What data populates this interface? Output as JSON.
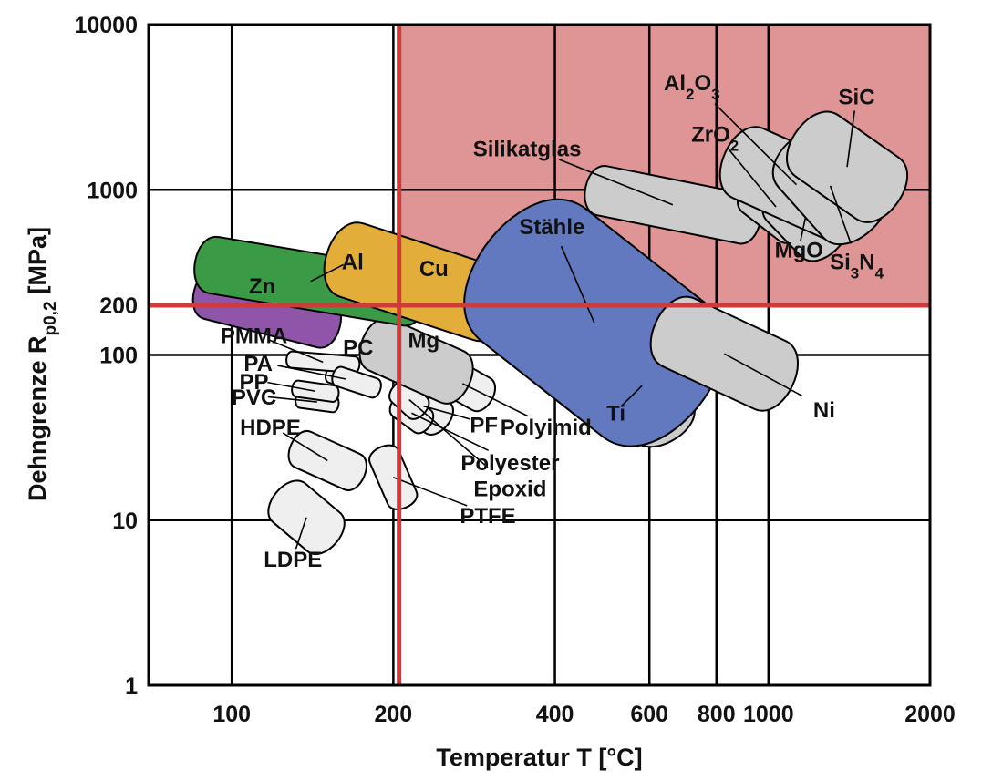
{
  "chart_data": {
    "type": "scatter",
    "title": "",
    "xlabel": "Temperatur T [°C]",
    "ylabel_main": "Dehngrenze R",
    "ylabel_sub": "p0,2",
    "ylabel_unit": "[MPa]",
    "x_scale": "log",
    "y_scale": "log",
    "xlim": [
      70,
      2000
    ],
    "ylim": [
      1,
      10000
    ],
    "x_ticks": [
      100,
      200,
      400,
      600,
      800,
      1000,
      2000
    ],
    "x_tick_labels": [
      "100",
      "200",
      "400",
      "600",
      "800",
      "1000",
      "2000"
    ],
    "y_ticks": [
      1,
      10,
      100,
      200,
      1000,
      10000
    ],
    "y_tick_labels": [
      "1",
      "10",
      "100",
      "200",
      "1000",
      "10000"
    ],
    "threshold": {
      "temperature": 205,
      "yield_strength": 200
    },
    "highlight_region": {
      "x": [
        205,
        2000
      ],
      "y": [
        200,
        10000
      ],
      "color": "#df9595"
    },
    "colors": {
      "zn": "#8e55a8",
      "al": "#3a9a46",
      "cu": "#e3ad3a",
      "steel": "#6278bf",
      "metal_gray": "#cccccc",
      "polymer_gray": "#efefef",
      "threshold_line": "#d03a3a"
    },
    "materials": [
      {
        "name": "LDPE",
        "temperature": [
          115,
          165
        ],
        "yield_strength": [
          6,
          18
        ],
        "label_at": [
          130,
          5.2
        ]
      },
      {
        "name": "HDPE",
        "temperature": [
          125,
          182
        ],
        "yield_strength": [
          15,
          35
        ],
        "label_at": [
          118,
          33
        ]
      },
      {
        "name": "PVC",
        "temperature": [
          130,
          160
        ],
        "yield_strength": [
          45,
          60
        ],
        "label_at": [
          110,
          50
        ]
      },
      {
        "name": "PP",
        "temperature": [
          128,
          160
        ],
        "yield_strength": [
          52,
          70
        ],
        "label_at": [
          110,
          62
        ]
      },
      {
        "name": "PA",
        "temperature": [
          148,
          180
        ],
        "yield_strength": [
          60,
          85
        ],
        "label_at": [
          112,
          80
        ]
      },
      {
        "name": "PMMA",
        "temperature": [
          125,
          175
        ],
        "yield_strength": [
          78,
          105
        ],
        "label_at": [
          110,
          118
        ]
      },
      {
        "name": "PC",
        "temperature": [
          152,
          192
        ],
        "yield_strength": [
          55,
          85
        ],
        "label_at": [
          172,
          100
        ]
      },
      {
        "name": "PF",
        "temperature": [
          198,
          262
        ],
        "yield_strength": [
          32,
          75
        ],
        "label_at": [
          295,
          34
        ]
      },
      {
        "name": "Polyester",
        "temperature": [
          195,
          240
        ],
        "yield_strength": [
          33,
          60
        ],
        "label_at": [
          330,
          20
        ]
      },
      {
        "name": "Epoxid",
        "temperature": [
          195,
          235
        ],
        "yield_strength": [
          40,
          72
        ],
        "label_at": [
          330,
          14
        ]
      },
      {
        "name": "PTFE",
        "temperature": [
          180,
          222
        ],
        "yield_strength": [
          11,
          30
        ],
        "label_at": [
          300,
          9.6
        ]
      },
      {
        "name": "Polyimid",
        "temperature": [
          230,
          315
        ],
        "yield_strength": [
          45,
          100
        ],
        "label_at": [
          385,
          33
        ]
      },
      {
        "name": "Mg",
        "temperature": [
          168,
          290
        ],
        "yield_strength": [
          50,
          170
        ],
        "label_at": [
          228,
          111
        ]
      },
      {
        "name": "Zn",
        "temperature": [
          82,
          165
        ],
        "yield_strength": [
          110,
          330
        ],
        "label_at": [
          114,
          235
        ]
      },
      {
        "name": "Al",
        "temperature": [
          82,
          240
        ],
        "yield_strength": [
          150,
          520
        ],
        "label_at": [
          168,
          330
        ]
      },
      {
        "name": "Cu",
        "temperature": [
          142,
          350
        ],
        "yield_strength": [
          120,
          640
        ],
        "label_at": [
          238,
          300
        ]
      },
      {
        "name": "Ti",
        "temperature": [
          460,
          735
        ],
        "yield_strength": [
          25,
          170
        ],
        "label_at": [
          520,
          40
        ]
      },
      {
        "name": "Stähle",
        "temperature": [
          255,
          880
        ],
        "yield_strength": [
          25,
          980
        ],
        "label_at": [
          395,
          540
        ]
      },
      {
        "name": "Ni",
        "temperature": [
          580,
          1180
        ],
        "yield_strength": [
          45,
          230
        ],
        "label_at": [
          1270,
          42
        ]
      },
      {
        "name": "Silikatglas",
        "temperature": [
          440,
          1000
        ],
        "yield_strength": [
          470,
          1400
        ],
        "label_at": [
          355,
          1600
        ]
      },
      {
        "name": "ZrO",
        "sub": "2",
        "temperature": [
          860,
          1240
        ],
        "yield_strength": [
          460,
          1350
        ],
        "label_at": [
          795,
          1950
        ]
      },
      {
        "name": "MgO",
        "temperature": [
          960,
          1430
        ],
        "yield_strength": [
          350,
          1300
        ],
        "label_at": [
          1140,
          390
        ]
      },
      {
        "name": "Al",
        "sub": "2",
        "name_mid": "O",
        "sub2": "3",
        "temperature": [
          780,
          1630
        ],
        "yield_strength": [
          470,
          2450
        ],
        "label_at": [
          720,
          4000
        ]
      },
      {
        "name": "Si",
        "sub": "3",
        "name_mid": "N",
        "sub2": "4",
        "temperature": [
          1000,
          1700
        ],
        "yield_strength": [
          430,
          2600
        ],
        "label_at": [
          1460,
          330
        ]
      },
      {
        "name": "SiC",
        "temperature": [
          1050,
          1870
        ],
        "yield_strength": [
          610,
          3100
        ],
        "label_at": [
          1460,
          3300
        ]
      }
    ]
  }
}
